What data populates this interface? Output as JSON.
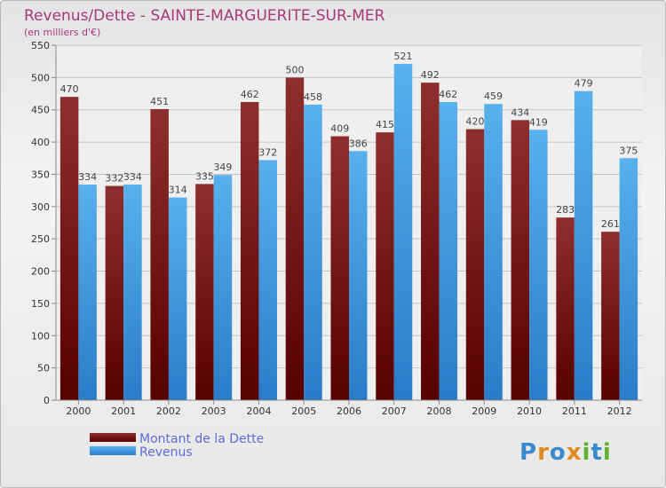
{
  "chart_data": {
    "type": "bar",
    "title": "Revenus/Dette - SAINTE-MARGUERITE-SUR-MER",
    "subtitle": "(en milliers d'€)",
    "categories": [
      "2000",
      "2001",
      "2002",
      "2003",
      "2004",
      "2005",
      "2006",
      "2007",
      "2008",
      "2009",
      "2010",
      "2011",
      "2012"
    ],
    "series": [
      {
        "name": "Montant de la Dette",
        "color": "#8b2b2b",
        "values": [
          470,
          332,
          451,
          335,
          462,
          500,
          409,
          415,
          492,
          420,
          434,
          283,
          261
        ]
      },
      {
        "name": "Revenus",
        "color": "#3c9ae0",
        "values": [
          334,
          334,
          314,
          349,
          372,
          458,
          386,
          521,
          462,
          459,
          419,
          479,
          375
        ]
      }
    ],
    "ylim": [
      0,
      550
    ],
    "yticks": [
      0,
      50,
      100,
      150,
      200,
      250,
      300,
      350,
      400,
      450,
      500,
      550
    ],
    "grid": true,
    "legend_position": "bottom-left"
  },
  "brand": {
    "letters": [
      "P",
      "r",
      "o",
      "x",
      "i",
      "t",
      "i"
    ],
    "colors": [
      "#3a8ad0",
      "#e08a20",
      "#3a8ad0",
      "#e08a20",
      "#60b030",
      "#3a8ad0",
      "#60b030"
    ]
  }
}
